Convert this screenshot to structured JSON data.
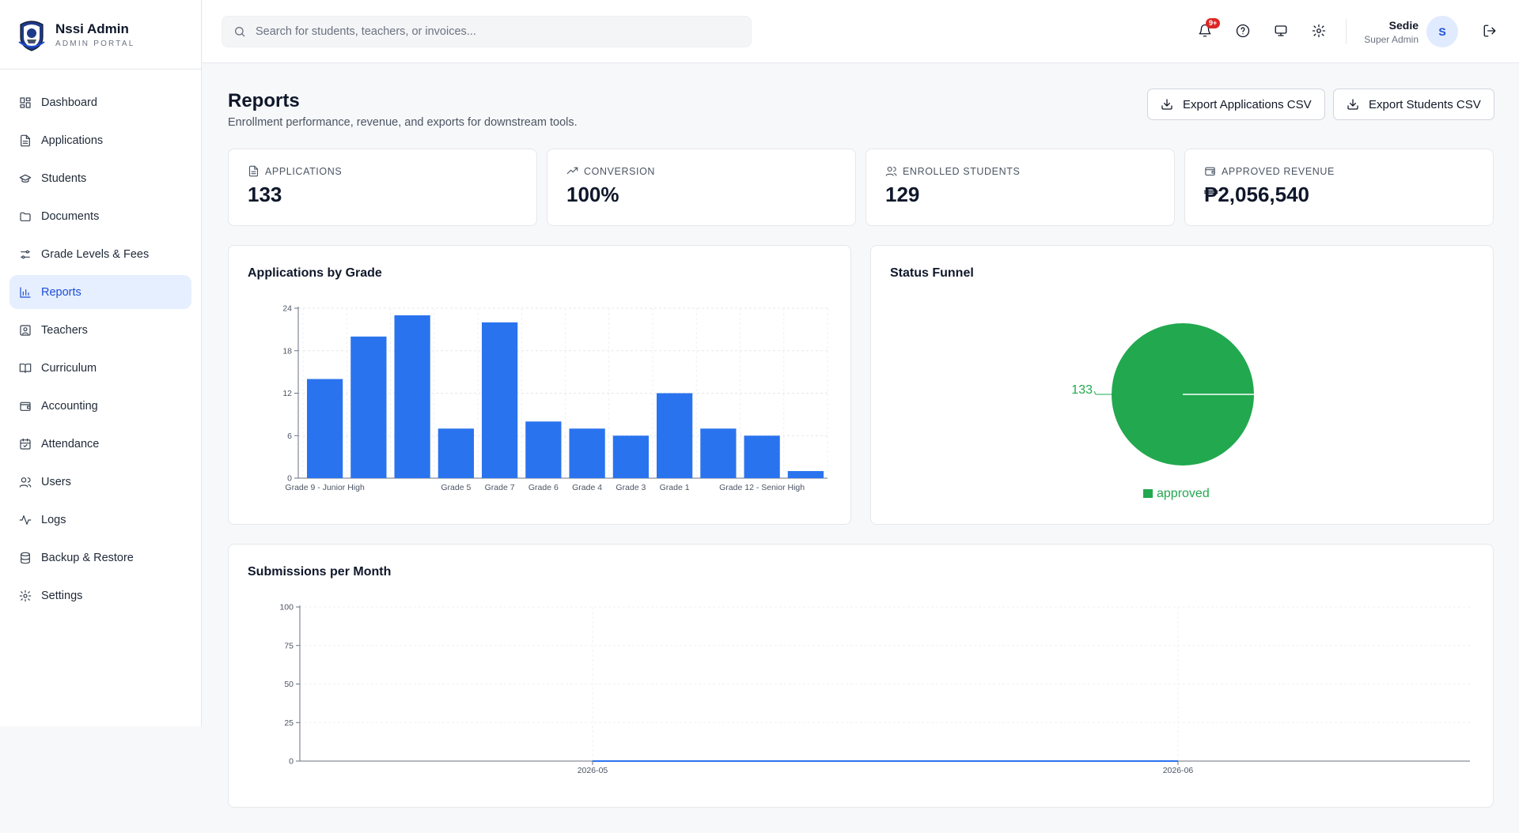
{
  "brand": {
    "name": "Nssi Admin",
    "subtitle": "ADMIN PORTAL"
  },
  "sidebar": {
    "items": [
      {
        "label": "Dashboard",
        "icon": "dashboard-icon"
      },
      {
        "label": "Applications",
        "icon": "file-icon"
      },
      {
        "label": "Students",
        "icon": "graduation-cap-icon"
      },
      {
        "label": "Documents",
        "icon": "folder-icon"
      },
      {
        "label": "Grade Levels & Fees",
        "icon": "sliders-icon"
      },
      {
        "label": "Reports",
        "icon": "bar-chart-icon",
        "active": true
      },
      {
        "label": "Teachers",
        "icon": "contact-icon"
      },
      {
        "label": "Curriculum",
        "icon": "book-icon"
      },
      {
        "label": "Accounting",
        "icon": "wallet-icon"
      },
      {
        "label": "Attendance",
        "icon": "calendar-check-icon"
      },
      {
        "label": "Users",
        "icon": "users-icon"
      },
      {
        "label": "Logs",
        "icon": "activity-icon"
      },
      {
        "label": "Backup & Restore",
        "icon": "database-icon"
      },
      {
        "label": "Settings",
        "icon": "gear-icon"
      }
    ]
  },
  "header": {
    "search_placeholder": "Search for students, teachers, or invoices...",
    "notification_badge": "9+",
    "user_name": "Sedie",
    "user_role": "Super Admin",
    "avatar_initial": "S"
  },
  "page": {
    "title": "Reports",
    "subtitle": "Enrollment performance, revenue, and exports for downstream tools.",
    "export_applications": "Export Applications CSV",
    "export_students": "Export Students CSV"
  },
  "stats": [
    {
      "label": "APPLICATIONS",
      "value": "133",
      "icon": "file-icon"
    },
    {
      "label": "CONVERSION",
      "value": "100%",
      "icon": "trending-up-icon"
    },
    {
      "label": "ENROLLED STUDENTS",
      "value": "129",
      "icon": "users-icon"
    },
    {
      "label": "APPROVED REVENUE",
      "value": "₱2,056,540",
      "icon": "wallet-icon"
    }
  ],
  "colors": {
    "accent": "#1d4ed8",
    "bar": "#2a73ee",
    "approved": "#22a84f",
    "badge": "#dc2626"
  },
  "chart_data": [
    {
      "type": "bar",
      "title": "Applications by Grade",
      "categories": [
        "Grade 9 - Junior High",
        "",
        "",
        "Grade 5",
        "Grade 7",
        "Grade 6",
        "Grade 4",
        "Grade 3",
        "Grade 1",
        "",
        "Grade 12 - Senior High",
        ""
      ],
      "values": [
        14,
        20,
        23,
        7,
        22,
        8,
        7,
        6,
        12,
        7,
        6,
        1
      ],
      "ylim": [
        0,
        24
      ],
      "yticks": [
        0,
        6,
        12,
        18,
        24
      ],
      "grid": true
    },
    {
      "type": "pie",
      "title": "Status Funnel",
      "slices": [
        {
          "name": "approved",
          "value": 133
        }
      ],
      "legend": "bottom"
    },
    {
      "type": "line",
      "title": "Submissions per Month",
      "x": [
        "2026-05",
        "2026-06"
      ],
      "series": [
        {
          "values": [
            0,
            0
          ]
        }
      ],
      "ylim": [
        0,
        100
      ],
      "yticks": [
        0,
        25,
        50,
        75,
        100
      ],
      "grid": true
    }
  ]
}
